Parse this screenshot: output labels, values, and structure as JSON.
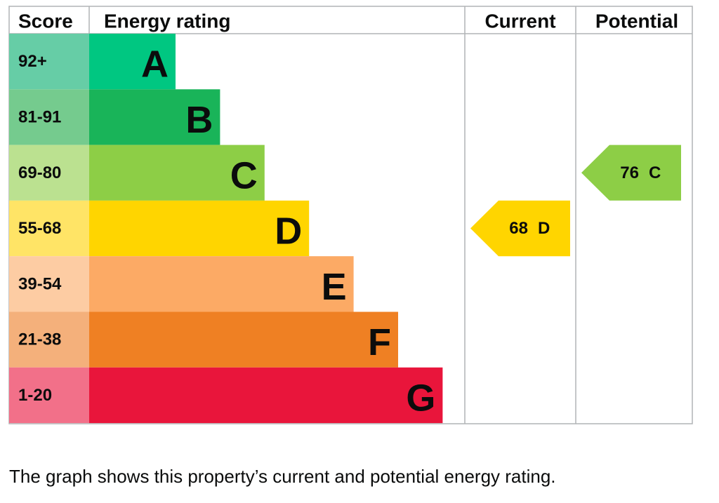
{
  "headers": {
    "score": "Score",
    "rating": "Energy rating",
    "current": "Current",
    "potential": "Potential"
  },
  "bands": [
    {
      "score": "92+",
      "rating": "A",
      "color": "#00c781",
      "score_color": "#66cda6"
    },
    {
      "score": "81-91",
      "rating": "B",
      "color": "#19b459",
      "score_color": "#75cb8e"
    },
    {
      "score": "69-80",
      "rating": "C",
      "color": "#8dce46",
      "score_color": "#bbe190"
    },
    {
      "score": "55-68",
      "rating": "D",
      "color": "#ffd500",
      "score_color": "#ffe466"
    },
    {
      "score": "39-54",
      "rating": "E",
      "color": "#fcaa65",
      "score_color": "#fdcca3"
    },
    {
      "score": "21-38",
      "rating": "F",
      "color": "#ef8023",
      "score_color": "#f4b07b"
    },
    {
      "score": "1-20",
      "rating": "G",
      "color": "#e9153b",
      "score_color": "#f27089"
    }
  ],
  "current": {
    "score": "68",
    "rating": "D"
  },
  "potential": {
    "score": "76",
    "rating": "C"
  },
  "caption": "The graph shows this property’s current and potential energy rating."
}
